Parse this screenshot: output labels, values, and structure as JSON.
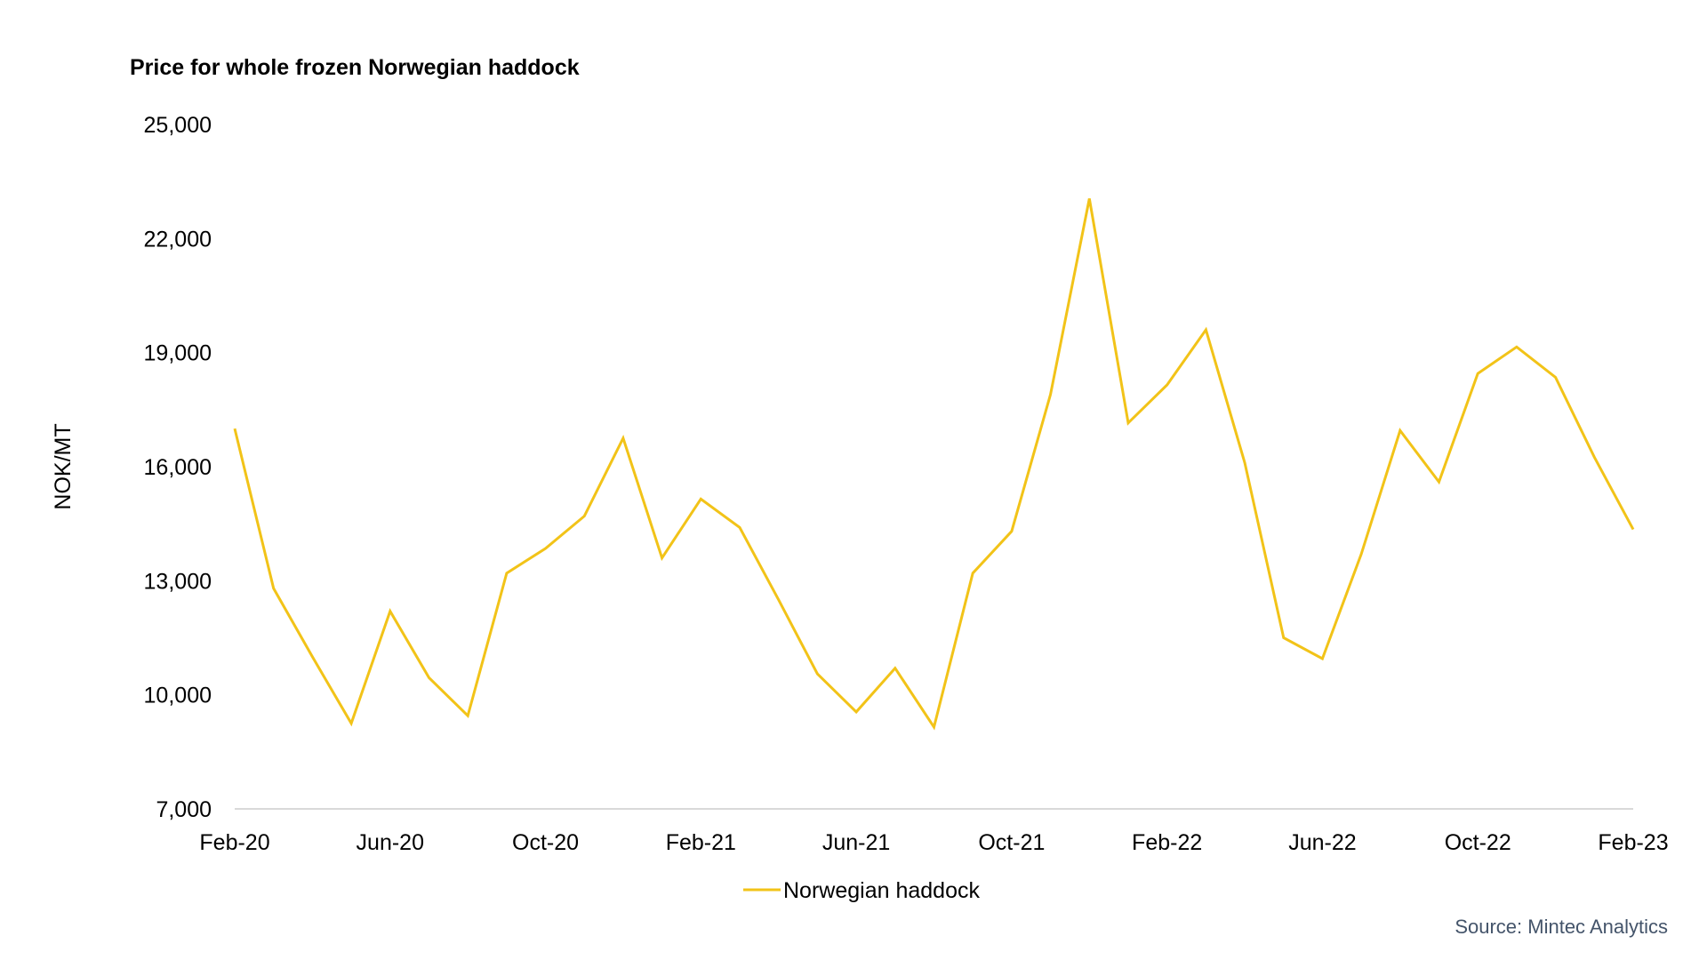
{
  "chart_data": {
    "type": "line",
    "title": "Price for whole frozen Norwegian haddock",
    "ylabel": "NOK/MT",
    "xlabel": "",
    "ylim": [
      7000,
      25000
    ],
    "yticks": [
      7000,
      10000,
      13000,
      16000,
      19000,
      22000,
      25000
    ],
    "ytick_labels": [
      "7,000",
      "10,000",
      "13,000",
      "16,000",
      "19,000",
      "22,000",
      "25,000"
    ],
    "x": [
      "Feb-20",
      "Mar-20",
      "Apr-20",
      "May-20",
      "Jun-20",
      "Jul-20",
      "Aug-20",
      "Sep-20",
      "Oct-20",
      "Nov-20",
      "Dec-20",
      "Jan-21",
      "Feb-21",
      "Mar-21",
      "Apr-21",
      "May-21",
      "Jun-21",
      "Jul-21",
      "Aug-21",
      "Sep-21",
      "Oct-21",
      "Nov-21",
      "Dec-21",
      "Jan-22",
      "Feb-22",
      "Mar-22",
      "Apr-22",
      "May-22",
      "Jun-22",
      "Jul-22",
      "Aug-22",
      "Sep-22",
      "Oct-22",
      "Nov-22",
      "Dec-22",
      "Jan-23",
      "Feb-23"
    ],
    "xtick_labels": [
      "Feb-20",
      "Jun-20",
      "Oct-20",
      "Feb-21",
      "Jun-21",
      "Oct-21",
      "Feb-22",
      "Jun-22",
      "Oct-22",
      "Feb-23"
    ],
    "series": [
      {
        "name": "Norwegian haddock",
        "color": "#f2c318",
        "values": [
          17000,
          12800,
          11000,
          9250,
          12200,
          10450,
          9450,
          13200,
          13850,
          14700,
          16750,
          13600,
          15150,
          14400,
          12500,
          10550,
          9550,
          10700,
          9150,
          13200,
          14300,
          17900,
          23050,
          17150,
          18150,
          19600,
          16100,
          11500,
          10950,
          13700,
          16950,
          15600,
          18450,
          19150,
          18350,
          16250,
          14350
        ]
      }
    ],
    "grid": false,
    "legend_position": "bottom-center"
  },
  "source_note": "Source: Mintec Analytics"
}
